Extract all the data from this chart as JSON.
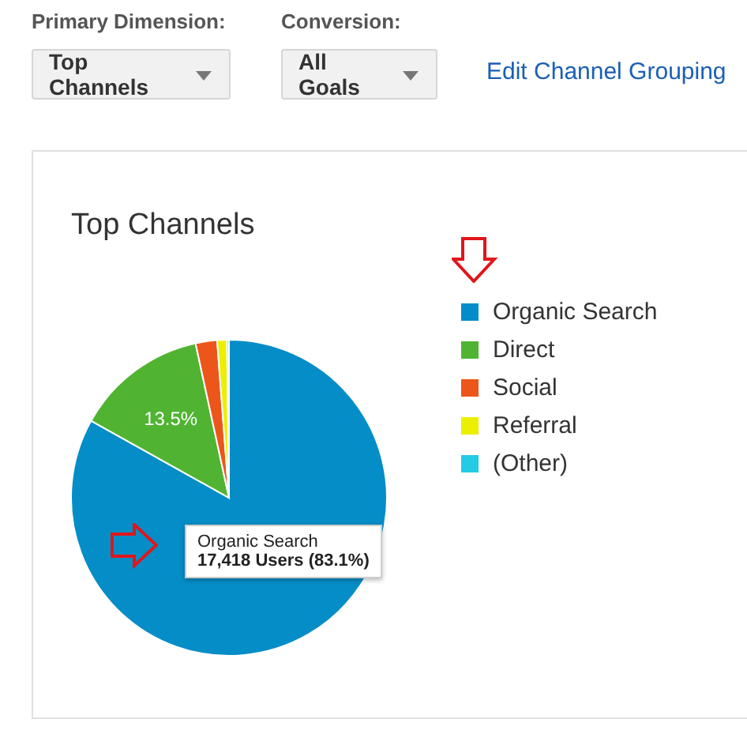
{
  "chart_data": {
    "type": "pie",
    "title": "Top Channels",
    "categories": [
      "Organic Search",
      "Direct",
      "Social",
      "Referral",
      "(Other)"
    ],
    "values": [
      83.1,
      13.5,
      2.2,
      1.0,
      0.2
    ],
    "colors": [
      "#058dc7",
      "#50b432",
      "#ed561b",
      "#edef00",
      "#24cbe5"
    ],
    "value_labels": [
      null,
      "13.5%",
      null,
      null,
      null
    ],
    "legend": "right",
    "annotations": [
      "Primary Dimension:",
      "Conversion:",
      "Top Channels",
      "All Goals",
      "Edit Channel Grouping",
      "Organic Search",
      "17,418 Users (83.1%)"
    ]
  }
}
